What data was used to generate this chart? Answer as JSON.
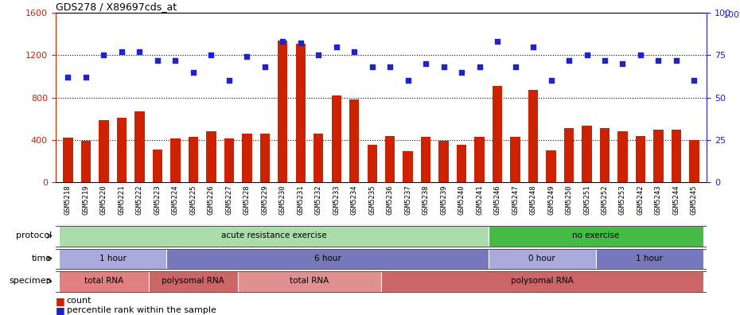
{
  "title": "GDS278 / X89697cds_at",
  "samples": [
    "GSM5218",
    "GSM5219",
    "GSM5220",
    "GSM5221",
    "GSM5222",
    "GSM5223",
    "GSM5224",
    "GSM5225",
    "GSM5226",
    "GSM5227",
    "GSM5228",
    "GSM5229",
    "GSM5230",
    "GSM5231",
    "GSM5232",
    "GSM5233",
    "GSM5234",
    "GSM5235",
    "GSM5236",
    "GSM5237",
    "GSM5238",
    "GSM5239",
    "GSM5240",
    "GSM5241",
    "GSM5246",
    "GSM5247",
    "GSM5248",
    "GSM5249",
    "GSM5250",
    "GSM5251",
    "GSM5252",
    "GSM5253",
    "GSM5242",
    "GSM5243",
    "GSM5244",
    "GSM5245"
  ],
  "counts": [
    420,
    390,
    590,
    610,
    670,
    310,
    415,
    430,
    480,
    415,
    460,
    460,
    1340,
    1310,
    460,
    820,
    785,
    355,
    440,
    295,
    430,
    390,
    355,
    430,
    910,
    430,
    870,
    305,
    510,
    535,
    510,
    480,
    435,
    495,
    500,
    400
  ],
  "percentiles": [
    62,
    62,
    75,
    77,
    77,
    72,
    72,
    65,
    75,
    60,
    74,
    68,
    83,
    82,
    75,
    80,
    77,
    68,
    68,
    60,
    70,
    68,
    65,
    68,
    83,
    68,
    80,
    60,
    72,
    75,
    72,
    70,
    75,
    72,
    72,
    60
  ],
  "ylim_left": [
    0,
    1600
  ],
  "ylim_right": [
    0,
    100
  ],
  "yticks_left": [
    0,
    400,
    800,
    1200,
    1600
  ],
  "yticks_right": [
    0,
    25,
    50,
    75,
    100
  ],
  "bar_color": "#cc2200",
  "dot_color": "#2222cc",
  "protocol_blocks": [
    {
      "label": "acute resistance exercise",
      "start": 0,
      "end": 24,
      "color": "#aaddaa"
    },
    {
      "label": "no exercise",
      "start": 24,
      "end": 36,
      "color": "#44bb44"
    }
  ],
  "time_blocks": [
    {
      "label": "1 hour",
      "start": 0,
      "end": 6,
      "color": "#aaaadd"
    },
    {
      "label": "6 hour",
      "start": 6,
      "end": 24,
      "color": "#7777bb"
    },
    {
      "label": "0 hour",
      "start": 24,
      "end": 30,
      "color": "#aaaadd"
    },
    {
      "label": "1 hour",
      "start": 30,
      "end": 36,
      "color": "#7777bb"
    }
  ],
  "specimen_blocks": [
    {
      "label": "total RNA",
      "start": 0,
      "end": 5,
      "color": "#e08080"
    },
    {
      "label": "polysomal RNA",
      "start": 5,
      "end": 10,
      "color": "#cc6666"
    },
    {
      "label": "total RNA",
      "start": 10,
      "end": 18,
      "color": "#e09090"
    },
    {
      "label": "polysomal RNA",
      "start": 18,
      "end": 36,
      "color": "#cc6666"
    }
  ],
  "row_labels": [
    "protocol",
    "time",
    "specimen"
  ],
  "xticklabel_bg": "#dddddd",
  "gridline_color": "#333333",
  "gridline_vals": [
    400,
    800,
    1200
  ]
}
